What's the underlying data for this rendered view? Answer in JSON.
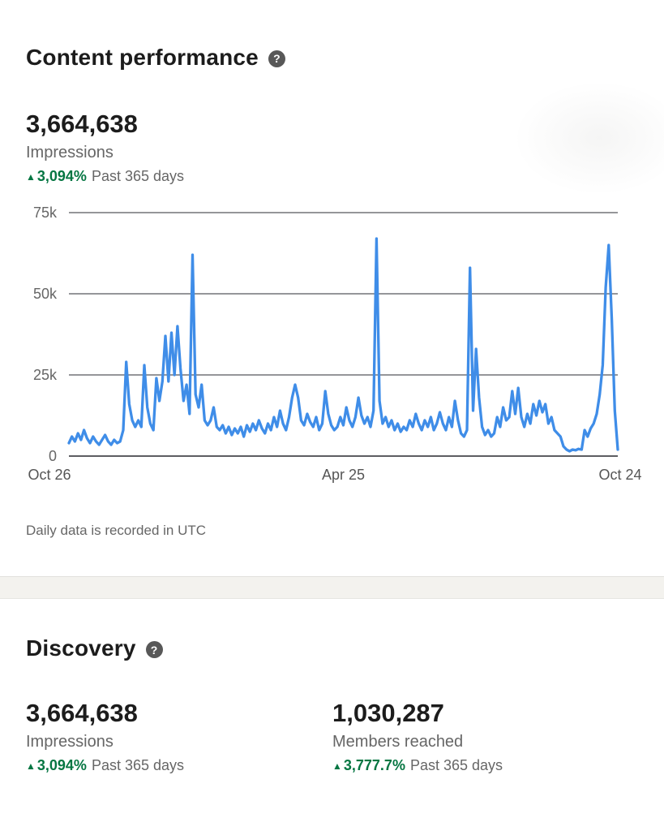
{
  "colors": {
    "line_blue": "#3f8de8",
    "success_green": "#057642",
    "text_dark": "#1c1c1c",
    "text_gray": "#666666",
    "gridline": "#56575c",
    "baseline": "#46474c",
    "divider_band": "#f3f2ee"
  },
  "content_performance": {
    "title": "Content performance",
    "help_glyph": "?",
    "stat": {
      "value": "3,664,638",
      "label": "Impressions",
      "arrow": "▲",
      "delta": "3,094%",
      "period": "Past 365 days"
    },
    "footnote": "Daily data is recorded in UTC"
  },
  "chart_data": {
    "type": "line",
    "title": "Impressions, past 365 days",
    "x_tick_labels": [
      "Oct 26",
      "Apr 25",
      "Oct 24"
    ],
    "y_tick_labels": [
      "75k",
      "50k",
      "25k",
      "0"
    ],
    "y_ticks": [
      75000,
      50000,
      25000,
      0
    ],
    "ylim": [
      0,
      75000
    ],
    "x_range_days": 365,
    "grid": "horizontal",
    "legend": "none",
    "series": [
      {
        "name": "Impressions",
        "values": [
          4000,
          6000,
          4500,
          7000,
          5000,
          8000,
          5500,
          4000,
          6000,
          4500,
          3500,
          5000,
          6500,
          4500,
          3500,
          5000,
          4000,
          4500,
          8000,
          29000,
          16000,
          11000,
          9000,
          11000,
          9000,
          28000,
          15000,
          10000,
          8000,
          24000,
          17000,
          23000,
          37000,
          23000,
          38000,
          25000,
          40000,
          27000,
          17000,
          22000,
          13000,
          62000,
          19000,
          15000,
          22000,
          11000,
          9500,
          11000,
          15000,
          9000,
          8000,
          9500,
          7000,
          9000,
          6500,
          8500,
          7000,
          9000,
          6000,
          9500,
          7500,
          10000,
          8000,
          11000,
          8500,
          7000,
          10000,
          8000,
          12000,
          9000,
          14000,
          10000,
          8000,
          12000,
          18000,
          22000,
          18000,
          11000,
          9500,
          13000,
          10500,
          9000,
          12000,
          8000,
          10000,
          20000,
          13000,
          9500,
          8000,
          9000,
          12000,
          9500,
          15000,
          11000,
          9000,
          12000,
          18000,
          12500,
          10000,
          12000,
          9000,
          14000,
          67000,
          17000,
          10000,
          12000,
          9000,
          11000,
          8000,
          10000,
          7500,
          9000,
          8000,
          11000,
          9000,
          13000,
          10000,
          8000,
          11000,
          9000,
          12000,
          8000,
          10000,
          13500,
          10000,
          8000,
          12000,
          9000,
          17000,
          11000,
          7000,
          6000,
          8000,
          58000,
          14000,
          33000,
          18000,
          9000,
          6500,
          8000,
          6000,
          7000,
          12000,
          9000,
          15000,
          11000,
          12000,
          20000,
          13000,
          21000,
          12000,
          9000,
          13000,
          10000,
          16000,
          12500,
          17000,
          13500,
          16000,
          10000,
          12000,
          8000,
          7000,
          6000,
          3000,
          2000,
          1500,
          2000,
          1800,
          2200,
          2000,
          8000,
          6000,
          8500,
          10000,
          13000,
          19000,
          28000,
          52000,
          65000,
          42000,
          14000,
          2000
        ]
      }
    ]
  },
  "discovery": {
    "title": "Discovery",
    "help_glyph": "?",
    "stats": [
      {
        "value": "3,664,638",
        "label": "Impressions",
        "arrow": "▲",
        "delta": "3,094%",
        "period": "Past 365 days"
      },
      {
        "value": "1,030,287",
        "label": "Members reached",
        "arrow": "▲",
        "delta": "3,777.7%",
        "period": "Past 365 days"
      }
    ]
  }
}
